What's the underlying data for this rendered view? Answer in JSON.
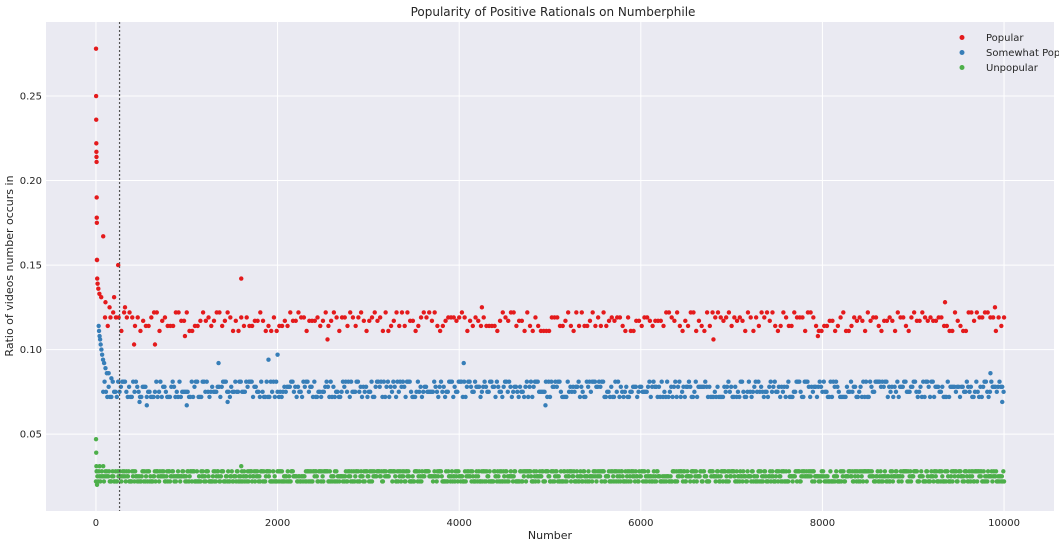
{
  "chart_data": {
    "type": "scatter",
    "title": "Popularity of Positive Rationals on Numberphile",
    "xlabel": "Number",
    "ylabel": "Ratio of videos number occurs in",
    "xlim": [
      -550,
      10550
    ],
    "ylim": [
      0.0045,
      0.2938
    ],
    "x_ticks": [
      0,
      2000,
      4000,
      6000,
      8000,
      10000
    ],
    "x_tick_labels": [
      "0",
      "2000",
      "4000",
      "6000",
      "8000",
      "10000"
    ],
    "y_ticks": [
      0.05,
      0.1,
      0.15,
      0.2,
      0.25
    ],
    "y_tick_labels": [
      "0.05",
      "0.10",
      "0.15",
      "0.20",
      "0.25"
    ],
    "grid": true,
    "legend_position": "top-right",
    "vertical_line": {
      "x": 260,
      "style": "dotted",
      "color": "#555555"
    },
    "colors": {
      "background": "#eaeaf2",
      "grid": "#ffffff",
      "popular": "#e41a1c",
      "somewhat": "#377eb8",
      "unpopular": "#4daf4a"
    },
    "series": [
      {
        "name": "Popular",
        "color": "#e41a1c",
        "points": [
          [
            1,
            0.278
          ],
          [
            2,
            0.25
          ],
          [
            3,
            0.236
          ],
          [
            4,
            0.222
          ],
          [
            5,
            0.217
          ],
          [
            6,
            0.214
          ],
          [
            7,
            0.211
          ],
          [
            8,
            0.19
          ],
          [
            9,
            0.178
          ],
          [
            10,
            0.175
          ],
          [
            11,
            0.153
          ],
          [
            12,
            0.153
          ],
          [
            14,
            0.142
          ],
          [
            18,
            0.139
          ],
          [
            26,
            0.136
          ],
          [
            38,
            0.133
          ],
          [
            58,
            0.131
          ],
          [
            80,
            0.167
          ],
          [
            105,
            0.128
          ],
          [
            150,
            0.125
          ],
          [
            200,
            0.131
          ],
          [
            245,
            0.15
          ],
          [
            320,
            0.125
          ],
          [
            420,
            0.103
          ],
          [
            650,
            0.103
          ],
          [
            980,
            0.108
          ],
          [
            1600,
            0.142
          ],
          [
            2550,
            0.106
          ],
          [
            4250,
            0.125
          ],
          [
            6800,
            0.106
          ],
          [
            7950,
            0.108
          ],
          [
            9350,
            0.128
          ],
          [
            9900,
            0.125
          ]
        ],
        "band": {
          "x_start": 100,
          "x_end": 10000,
          "levels": [
            0.111,
            0.114,
            0.117,
            0.119,
            0.122
          ],
          "step": 30
        }
      },
      {
        "name": "Somewhat Popular",
        "color": "#377eb8",
        "points": [
          [
            30,
            0.114
          ],
          [
            34,
            0.111
          ],
          [
            40,
            0.108
          ],
          [
            46,
            0.106
          ],
          [
            52,
            0.103
          ],
          [
            60,
            0.1
          ],
          [
            68,
            0.097
          ],
          [
            78,
            0.094
          ],
          [
            90,
            0.092
          ],
          [
            105,
            0.089
          ],
          [
            120,
            0.086
          ],
          [
            140,
            0.086
          ],
          [
            170,
            0.083
          ],
          [
            1350,
            0.092
          ],
          [
            1900,
            0.094
          ],
          [
            2000,
            0.097
          ],
          [
            4050,
            0.092
          ],
          [
            9850,
            0.086
          ],
          [
            480,
            0.069
          ],
          [
            560,
            0.067
          ],
          [
            1000,
            0.067
          ],
          [
            1450,
            0.069
          ],
          [
            4950,
            0.067
          ],
          [
            9980,
            0.069
          ]
        ],
        "band": {
          "x_start": 80,
          "x_end": 10000,
          "levels": [
            0.072,
            0.075,
            0.078,
            0.081
          ],
          "step": 15
        }
      },
      {
        "name": "Unpopular",
        "color": "#4daf4a",
        "points": [
          [
            1,
            0.047
          ],
          [
            3,
            0.039
          ],
          [
            5,
            0.031
          ],
          [
            8,
            0.028
          ],
          [
            12,
            0.02
          ],
          [
            40,
            0.031
          ],
          [
            80,
            0.031
          ],
          [
            1600,
            0.031
          ]
        ],
        "band": {
          "x_start": 0,
          "x_end": 10000,
          "levels": [
            0.022,
            0.025,
            0.028
          ],
          "step": 8
        }
      }
    ]
  }
}
